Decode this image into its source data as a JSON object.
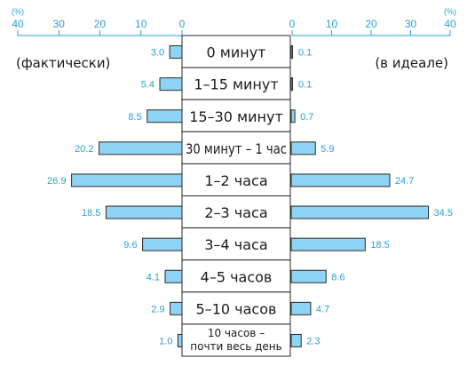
{
  "chart_data": {
    "type": "bar",
    "orientation": "horizontal-butterfly",
    "unit": "(%)",
    "axis_ticks": [
      40,
      30,
      20,
      10,
      0
    ],
    "xlim": [
      0,
      40
    ],
    "grid": false,
    "left_series": {
      "label": "(фактически)",
      "values": [
        3.0,
        5.4,
        8.5,
        20.2,
        26.9,
        18.5,
        9.6,
        4.1,
        2.9,
        1.0
      ],
      "value_labels": [
        "3.0",
        "5.4",
        "8.5",
        "20.2",
        "26.9",
        "18.5",
        "9.6",
        "4.1",
        "2.9",
        "1.0"
      ]
    },
    "right_series": {
      "label": "(в идеале)",
      "values": [
        0.1,
        0.1,
        0.7,
        5.9,
        24.7,
        34.5,
        18.5,
        8.6,
        4.7,
        2.3
      ],
      "value_labels": [
        "0.1",
        "0.1",
        "0.7",
        "5.9",
        "24.7",
        "34.5",
        "18.5",
        "8.6",
        "4.7",
        "2.3"
      ]
    },
    "categories": [
      [
        "0 минут"
      ],
      [
        "1–15 минут"
      ],
      [
        "15–30 минут"
      ],
      [
        "30 минут – 1 час"
      ],
      [
        "1–2 часа"
      ],
      [
        "2–3 часа"
      ],
      [
        "3–4 часа"
      ],
      [
        "4–5 часов"
      ],
      [
        "5–10 часов"
      ],
      [
        "10 часов –",
        "почти весь день"
      ]
    ],
    "colors": {
      "bar": "#8fd3f4",
      "text_accent": "#2a9fd0",
      "outline": "#2a2a2a"
    }
  }
}
